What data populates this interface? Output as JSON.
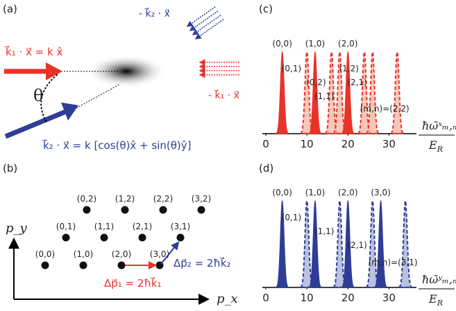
{
  "panel_a": {
    "label": "(a)",
    "k1_text": "k⃗₁ · x⃗ = k x̂",
    "theta": "θ",
    "k2_text": "k⃗₂ · x⃗ = k [cos(θ)x̂ + sin(θ)ŷ]",
    "minus_k2": "- k⃗₂ · x⃗",
    "minus_k1": "- k⃗₁ · x⃗"
  },
  "panel_b": {
    "label": "(b)",
    "nodes": [
      "(0,0)",
      "(1,0)",
      "(2,0)",
      "(3,0)",
      "(0,1)",
      "(1,1)",
      "(2,1)",
      "(3,1)",
      "(0,2)",
      "(1,2)",
      "(2,2)",
      "(3,2)"
    ],
    "py_label": "p_y",
    "px_label": "p_x",
    "dp1": "Δp⃗₁ = 2ħk⃗₁",
    "dp2": "Δp⃗₂ = 2ħk⃗₂"
  },
  "chart_data": [
    {
      "type": "peaks",
      "label": "(c)",
      "color": "#e8332a",
      "light_color": "#f6b9a6",
      "xlim": [
        0,
        35
      ],
      "xticks": [
        0,
        10,
        20,
        30
      ],
      "x_label_top": "ħω̃ˣₘ,ₙ",
      "x_label_bottom": "E",
      "x_label_bottom_sub": "R",
      "peaks": [
        {
          "label": "(0,0)",
          "x": 4,
          "style": "solid"
        },
        {
          "label": "(0,1)",
          "x": 10,
          "style": "dashed"
        },
        {
          "label": "(1,0)",
          "x": 12,
          "style": "solid"
        },
        {
          "label": "(0,2)",
          "x": 16,
          "style": "dashed"
        },
        {
          "label": "(1,1)",
          "x": 18,
          "style": "dashed"
        },
        {
          "label": "(2,0)",
          "x": 20,
          "style": "solid"
        },
        {
          "label": "(1,2)",
          "x": 24,
          "style": "dashed"
        },
        {
          "label": "(2,1)",
          "x": 26,
          "style": "dashed"
        },
        {
          "label": "(m,n)=(2,2)",
          "x": 32,
          "style": "dashed"
        }
      ]
    },
    {
      "type": "peaks",
      "label": "(d)",
      "color": "#2e3d96",
      "light_color": "#aab1d8",
      "xlim": [
        0,
        35
      ],
      "xticks": [
        0,
        10,
        20,
        30
      ],
      "x_label_top": "ħω̃ʸₘ,ₙ",
      "x_label_bottom": "E",
      "x_label_bottom_sub": "R",
      "peaks": [
        {
          "label": "(0,0)",
          "x": 4,
          "style": "solid"
        },
        {
          "label": "(0,1)",
          "x": 10,
          "style": "dashed"
        },
        {
          "label": "(1,0)",
          "x": 12,
          "style": "solid"
        },
        {
          "label": "(1,1)",
          "x": 18,
          "style": "dashed"
        },
        {
          "label": "(2,0)",
          "x": 20,
          "style": "solid"
        },
        {
          "label": "(2,1)",
          "x": 26,
          "style": "dashed"
        },
        {
          "label": "(3,0)",
          "x": 28,
          "style": "solid"
        },
        {
          "label": "(m,n)=(3,1)",
          "x": 34,
          "style": "dashed"
        }
      ]
    }
  ]
}
